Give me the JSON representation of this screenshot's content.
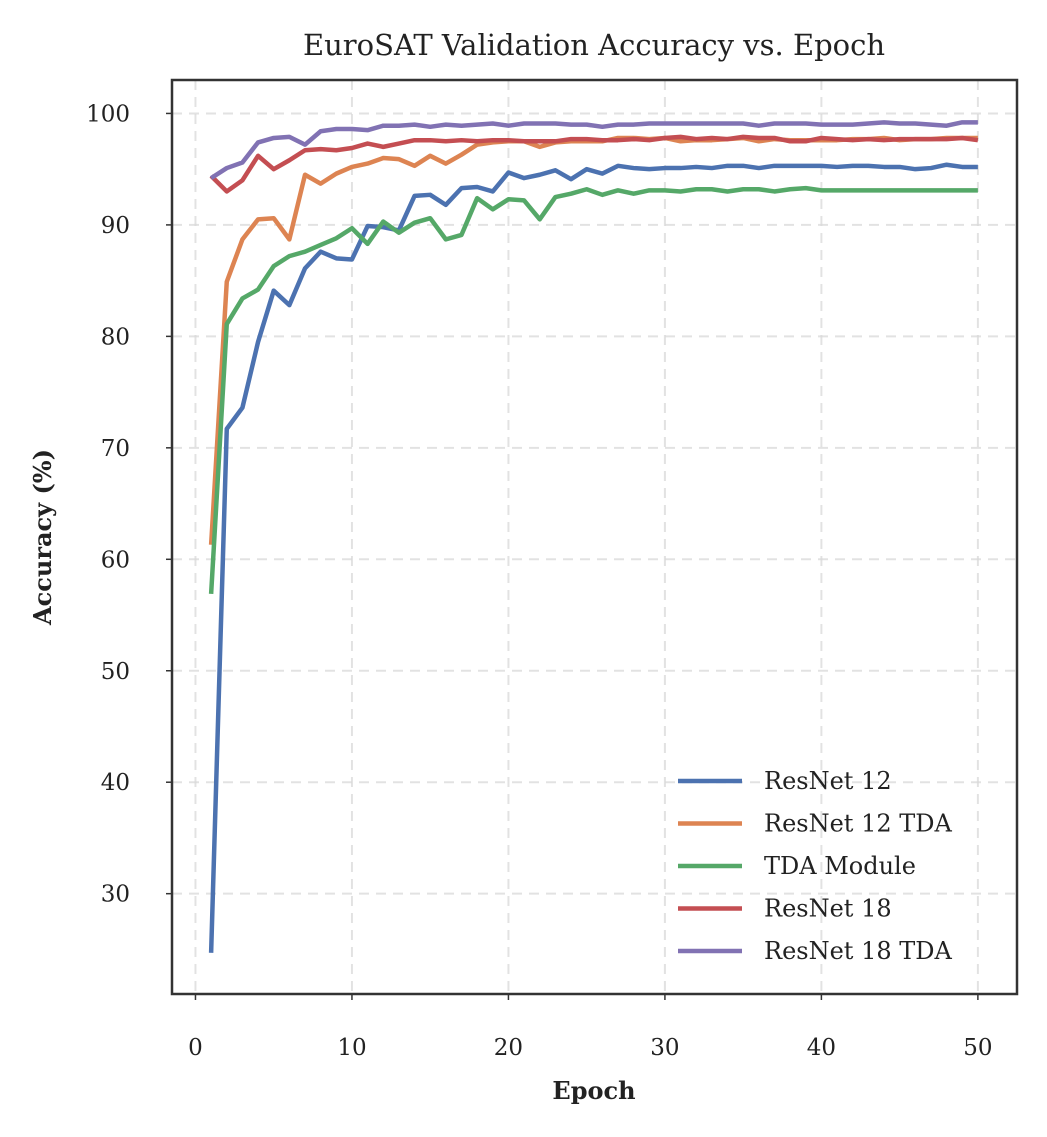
{
  "chart_data": {
    "type": "line",
    "title": "EuroSAT Validation Accuracy vs. Epoch",
    "xlabel": "Epoch",
    "ylabel": "Accuracy (%)",
    "xlim": [
      -1.5,
      52.5
    ],
    "ylim": [
      21,
      103
    ],
    "xticks": [
      0,
      10,
      20,
      30,
      40,
      50
    ],
    "yticks": [
      30,
      40,
      50,
      60,
      70,
      80,
      90,
      100
    ],
    "grid": true,
    "legend_position": "lower-right",
    "x": [
      1,
      2,
      3,
      4,
      5,
      6,
      7,
      8,
      9,
      10,
      11,
      12,
      13,
      14,
      15,
      16,
      17,
      18,
      19,
      20,
      21,
      22,
      23,
      24,
      25,
      26,
      27,
      28,
      29,
      30,
      31,
      32,
      33,
      34,
      35,
      36,
      37,
      38,
      39,
      40,
      41,
      42,
      43,
      44,
      45,
      46,
      47,
      48,
      49,
      50
    ],
    "series": [
      {
        "name": "ResNet 12",
        "color": "#4c72b0",
        "values": [
          24.7,
          71.7,
          73.6,
          79.5,
          84.1,
          82.8,
          86.1,
          87.6,
          87.0,
          86.9,
          89.9,
          89.8,
          89.5,
          92.6,
          92.7,
          91.8,
          93.3,
          93.4,
          93.0,
          94.7,
          94.2,
          94.5,
          94.9,
          94.1,
          95.0,
          94.6,
          95.3,
          95.1,
          95.0,
          95.1,
          95.1,
          95.2,
          95.1,
          95.3,
          95.3,
          95.1,
          95.3,
          95.3,
          95.3,
          95.3,
          95.2,
          95.3,
          95.3,
          95.2,
          95.2,
          95.0,
          95.1,
          95.4,
          95.2,
          95.2
        ]
      },
      {
        "name": "ResNet 12 TDA",
        "color": "#dd8452",
        "values": [
          61.3,
          84.9,
          88.7,
          90.5,
          90.6,
          88.7,
          94.5,
          93.7,
          94.6,
          95.2,
          95.5,
          96.0,
          95.9,
          95.3,
          96.2,
          95.5,
          96.3,
          97.2,
          97.4,
          97.5,
          97.5,
          97.0,
          97.4,
          97.5,
          97.5,
          97.5,
          97.8,
          97.8,
          97.7,
          97.8,
          97.5,
          97.6,
          97.6,
          97.7,
          97.8,
          97.5,
          97.7,
          97.6,
          97.6,
          97.6,
          97.6,
          97.7,
          97.7,
          97.8,
          97.6,
          97.7,
          97.7,
          97.8,
          97.8,
          97.8
        ]
      },
      {
        "name": "TDA Module",
        "color": "#55a868",
        "values": [
          56.9,
          81.1,
          83.4,
          84.2,
          86.3,
          87.2,
          87.6,
          88.2,
          88.8,
          89.7,
          88.3,
          90.3,
          89.3,
          90.2,
          90.6,
          88.7,
          89.1,
          92.4,
          91.4,
          92.3,
          92.2,
          90.5,
          92.5,
          92.8,
          93.2,
          92.7,
          93.1,
          92.8,
          93.1,
          93.1,
          93.0,
          93.2,
          93.2,
          93.0,
          93.2,
          93.2,
          93.0,
          93.2,
          93.3,
          93.1,
          93.1,
          93.1,
          93.1,
          93.1,
          93.1,
          93.1,
          93.1,
          93.1,
          93.1,
          93.1
        ]
      },
      {
        "name": "ResNet 18",
        "color": "#c44e52",
        "values": [
          94.4,
          93.0,
          94.0,
          96.2,
          95.0,
          95.8,
          96.7,
          96.8,
          96.7,
          96.9,
          97.3,
          97.0,
          97.3,
          97.6,
          97.6,
          97.5,
          97.6,
          97.5,
          97.6,
          97.6,
          97.5,
          97.5,
          97.5,
          97.7,
          97.7,
          97.6,
          97.6,
          97.7,
          97.6,
          97.8,
          97.9,
          97.7,
          97.8,
          97.7,
          97.9,
          97.8,
          97.8,
          97.5,
          97.5,
          97.8,
          97.7,
          97.6,
          97.7,
          97.6,
          97.7,
          97.7,
          97.7,
          97.7,
          97.8,
          97.6
        ]
      },
      {
        "name": "ResNet 18 TDA",
        "color": "#8172b3",
        "values": [
          94.2,
          95.1,
          95.6,
          97.4,
          97.8,
          97.9,
          97.2,
          98.4,
          98.6,
          98.6,
          98.5,
          98.9,
          98.9,
          99.0,
          98.8,
          99.0,
          98.9,
          99.0,
          99.1,
          98.9,
          99.1,
          99.1,
          99.1,
          99.0,
          99.0,
          98.8,
          99.0,
          99.0,
          99.1,
          99.1,
          99.1,
          99.1,
          99.1,
          99.1,
          99.1,
          98.9,
          99.1,
          99.1,
          99.1,
          99.0,
          99.0,
          99.0,
          99.1,
          99.2,
          99.1,
          99.1,
          99.0,
          98.9,
          99.2,
          99.2
        ]
      }
    ]
  }
}
